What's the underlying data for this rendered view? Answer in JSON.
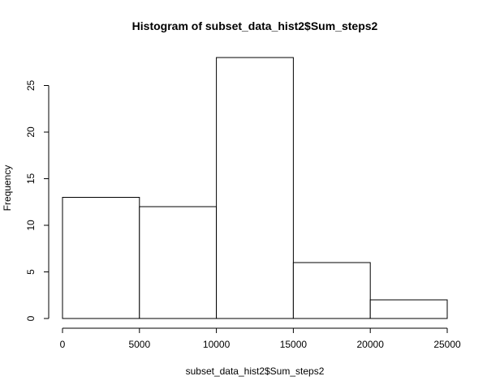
{
  "chart_data": {
    "type": "bar",
    "title": "Histogram of subset_data_hist2$Sum_steps2",
    "xlabel": "subset_data_hist2$Sum_steps2",
    "ylabel": "Frequency",
    "bins": [
      {
        "start": 0,
        "end": 5000,
        "count": 13
      },
      {
        "start": 5000,
        "end": 10000,
        "count": 12
      },
      {
        "start": 10000,
        "end": 15000,
        "count": 28
      },
      {
        "start": 15000,
        "end": 20000,
        "count": 6
      },
      {
        "start": 20000,
        "end": 25000,
        "count": 2
      }
    ],
    "xlim": [
      0,
      25000
    ],
    "ylim": [
      0,
      28
    ],
    "xticks": [
      0,
      5000,
      10000,
      15000,
      20000,
      25000
    ],
    "yticks": [
      0,
      5,
      10,
      15,
      20,
      25
    ],
    "grid": false,
    "bar_fill": "#ffffff",
    "bar_stroke": "#000000"
  }
}
